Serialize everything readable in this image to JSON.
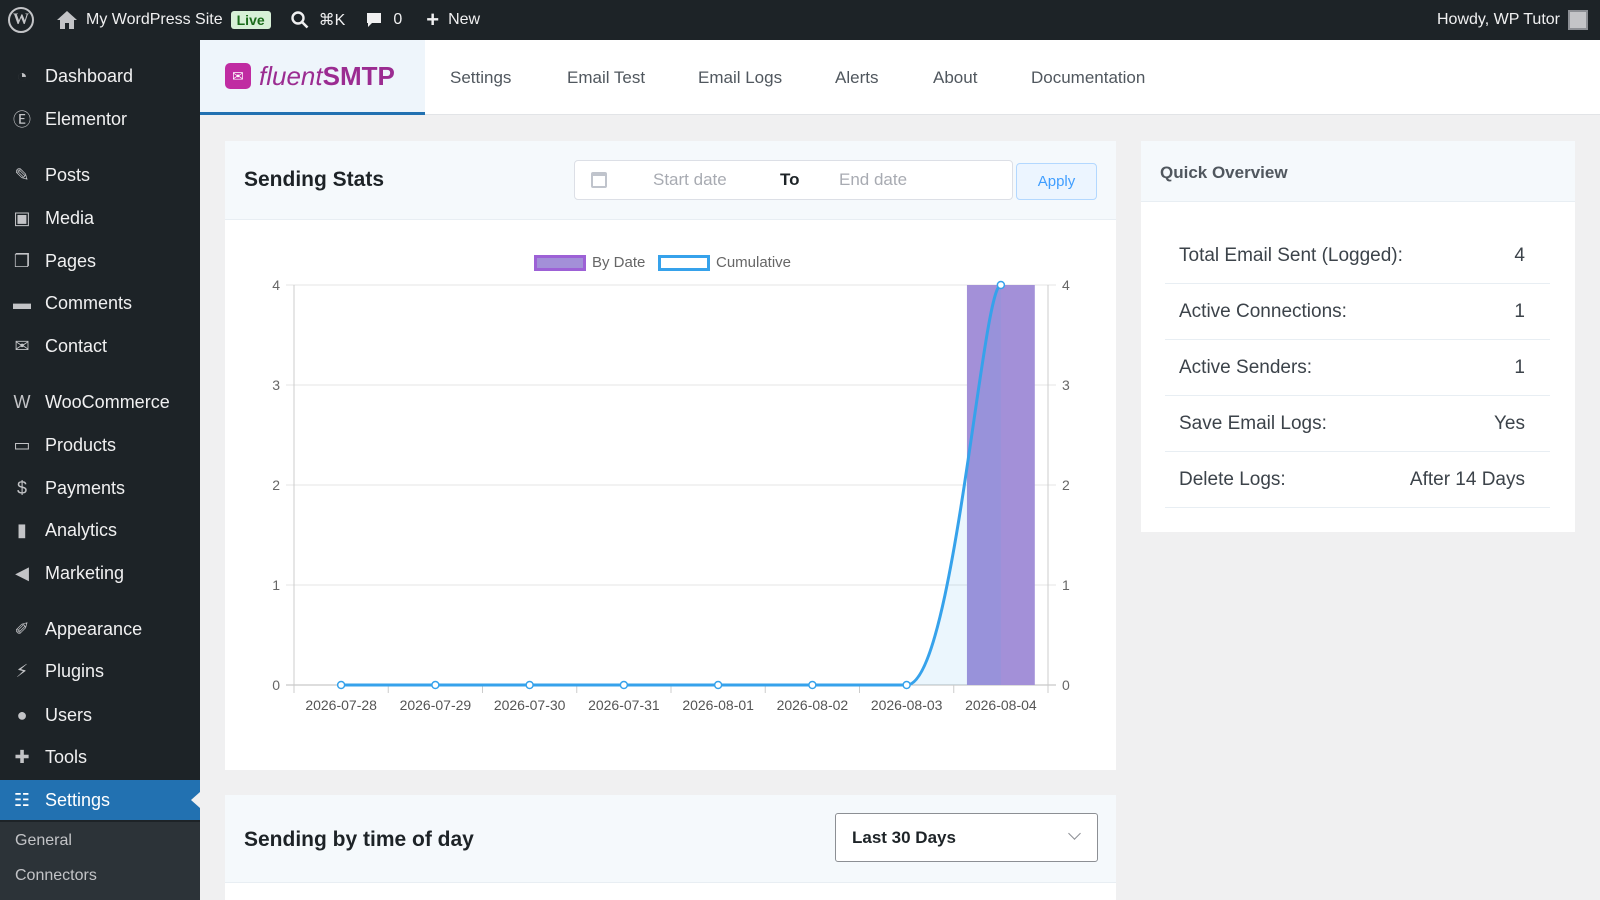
{
  "admin_bar": {
    "site_name": "My WordPress Site",
    "live_badge": "Live",
    "shortcut": "⌘K",
    "comments_count": "0",
    "new_label": "New",
    "howdy": "Howdy, WP Tutor"
  },
  "sidebar": {
    "items": [
      {
        "label": "Dashboard",
        "icon": "dashboard-icon"
      },
      {
        "label": "Elementor",
        "icon": "elementor-icon"
      },
      {
        "label": "Posts",
        "icon": "pin-icon"
      },
      {
        "label": "Media",
        "icon": "media-icon"
      },
      {
        "label": "Pages",
        "icon": "pages-icon"
      },
      {
        "label": "Comments",
        "icon": "comment-icon"
      },
      {
        "label": "Contact",
        "icon": "mail-icon"
      },
      {
        "label": "WooCommerce",
        "icon": "woo-icon"
      },
      {
        "label": "Products",
        "icon": "archive-icon"
      },
      {
        "label": "Payments",
        "icon": "dollar-icon"
      },
      {
        "label": "Analytics",
        "icon": "bar-chart-icon"
      },
      {
        "label": "Marketing",
        "icon": "megaphone-icon"
      },
      {
        "label": "Appearance",
        "icon": "brush-icon"
      },
      {
        "label": "Plugins",
        "icon": "plug-icon"
      },
      {
        "label": "Users",
        "icon": "user-icon"
      },
      {
        "label": "Tools",
        "icon": "wrench-icon"
      },
      {
        "label": "Settings",
        "icon": "settings-icon",
        "active": true
      }
    ],
    "submenu": [
      "General",
      "Connectors"
    ]
  },
  "plugin": {
    "logo_a": "fluent",
    "logo_b": "SMTP",
    "tabs": [
      "Settings",
      "Email Test",
      "Email Logs",
      "Alerts",
      "About",
      "Documentation"
    ]
  },
  "sending_stats": {
    "title": "Sending Stats",
    "start_placeholder": "Start date",
    "to_label": "To",
    "end_placeholder": "End date",
    "apply_label": "Apply"
  },
  "chart_data": {
    "type": "bar",
    "categories": [
      "2026-07-28",
      "2026-07-29",
      "2026-07-30",
      "2026-07-31",
      "2026-08-01",
      "2026-08-02",
      "2026-08-03",
      "2026-08-04"
    ],
    "series": [
      {
        "name": "By Date",
        "type": "bar",
        "values": [
          0,
          0,
          0,
          0,
          0,
          0,
          0,
          4
        ],
        "color": "#a390d8"
      },
      {
        "name": "Cumulative",
        "type": "line",
        "values": [
          0,
          0,
          0,
          0,
          0,
          0,
          0,
          4
        ],
        "color": "#36a2eb"
      }
    ],
    "ylim": [
      0,
      4
    ],
    "yticks": [
      0,
      1,
      2,
      3,
      4
    ],
    "y2ticks": [
      0,
      1,
      2,
      3,
      4
    ],
    "legend": "top",
    "grid": true
  },
  "quick_overview": {
    "title": "Quick Overview",
    "rows": [
      {
        "label": "Total Email Sent (Logged):",
        "value": "4"
      },
      {
        "label": "Active Connections:",
        "value": "1"
      },
      {
        "label": "Active Senders:",
        "value": "1"
      },
      {
        "label": "Save Email Logs:",
        "value": "Yes"
      },
      {
        "label": "Delete Logs:",
        "value": "After 14 Days"
      }
    ]
  },
  "time_of_day": {
    "title": "Sending by time of day",
    "range": "Last 30 Days"
  }
}
